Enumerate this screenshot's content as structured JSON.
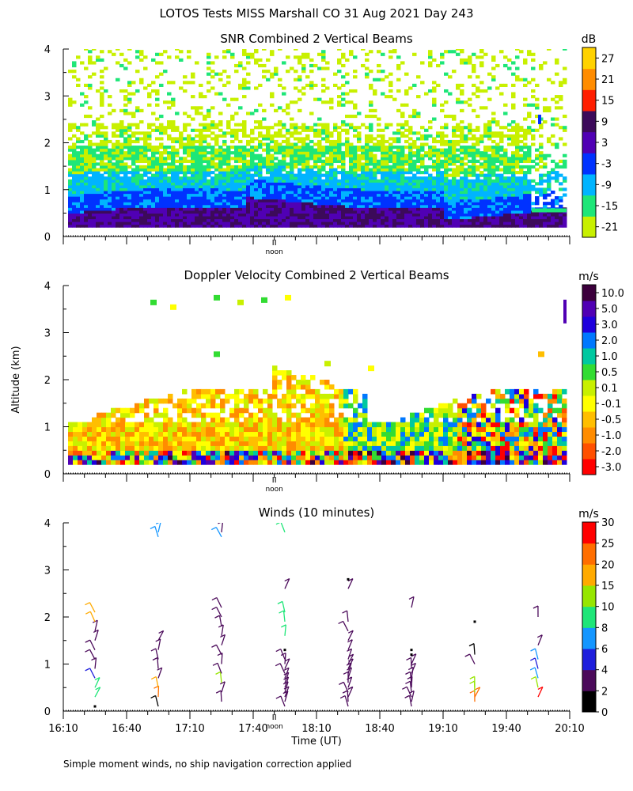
{
  "figure": {
    "title": "LOTOS Tests MISS Marshall CO  31 Aug 2021 Day 243",
    "footnote": "Simple moment winds, no ship navigation correction applied",
    "ylabel": "Altitude (km)",
    "xlabel": "Time (UT)",
    "noon_label": "noon"
  },
  "chart_data": [
    {
      "type": "heatmap",
      "title": "SNR Combined 2 Vertical Beams",
      "ylim": [
        0,
        4
      ],
      "yticks": [
        "0",
        "1",
        "2",
        "3",
        "4"
      ],
      "colorbar": {
        "unit": "dB",
        "tick_labels": [
          "-21",
          "-15",
          "-9",
          "-3",
          "3",
          "9",
          "15",
          "21",
          "27"
        ],
        "colors": [
          "#c8f000",
          "#1ee678",
          "#00b4ff",
          "#0032ff",
          "#5000b4",
          "#3c0a5a",
          "#ff1e00",
          "#ff8c00",
          "#ffd200"
        ]
      },
      "noon_x": "17:50"
    },
    {
      "type": "heatmap",
      "title": "Doppler Velocity Combined 2 Vertical Beams",
      "ylim": [
        0,
        4
      ],
      "yticks": [
        "0",
        "1",
        "2",
        "3",
        "4"
      ],
      "colorbar": {
        "unit": "m/s",
        "tick_labels": [
          "-3.0",
          "-2.0",
          "-1.0",
          "-0.5",
          "-0.1",
          "0.1",
          "0.5",
          "1.0",
          "2.0",
          "3.0",
          "5.0",
          "10.0"
        ],
        "colors": [
          "#ff0000",
          "#ff5000",
          "#ff8c00",
          "#ffbe00",
          "#ffff00",
          "#c8f000",
          "#32dc32",
          "#00c8a0",
          "#0078ff",
          "#1e00dc",
          "#5000b4",
          "#3c003c"
        ]
      },
      "noon_x": "17:50"
    },
    {
      "type": "scatter",
      "title": "Winds (10 minutes)",
      "ylim": [
        0,
        4
      ],
      "yticks": [
        "0",
        "1",
        "2",
        "3",
        "4"
      ],
      "xticks": [
        "16:10",
        "16:40",
        "17:10",
        "17:40",
        "18:10",
        "18:40",
        "19:10",
        "19:40",
        "20:10"
      ],
      "colorbar": {
        "unit": "m/s",
        "tick_labels": [
          "0",
          "2",
          "4",
          "6",
          "8",
          "10",
          "15",
          "20",
          "25",
          "30"
        ],
        "colors": [
          "#000000",
          "#4b0a5a",
          "#1e1edc",
          "#1496ff",
          "#1ee678",
          "#96e600",
          "#ffaa00",
          "#ff6e00",
          "#ff0000"
        ]
      },
      "noon_x": "17:50",
      "profile_times": [
        "16:25",
        "16:55",
        "17:25",
        "17:55",
        "18:25",
        "18:55",
        "19:25",
        "19:55"
      ],
      "profiles": [
        [
          0.1,
          0.3,
          0.5,
          0.7,
          0.9,
          1.1,
          1.3,
          1.5,
          1.7,
          1.9,
          2.1
        ],
        [
          0.1,
          0.3,
          0.5,
          0.7,
          0.9,
          1.1,
          1.3,
          1.5,
          3.7,
          3.8
        ],
        [
          0.2,
          0.4,
          0.6,
          0.8,
          1.0,
          1.2,
          1.4,
          1.6,
          1.8,
          2.0,
          2.2,
          3.7,
          3.8
        ],
        [
          0.1,
          0.2,
          0.3,
          0.4,
          0.5,
          0.6,
          0.7,
          0.8,
          0.9,
          1.0,
          1.1,
          1.3,
          1.6,
          1.9,
          2.1,
          2.6,
          3.8
        ],
        [
          0.1,
          0.2,
          0.3,
          0.4,
          0.5,
          0.6,
          0.7,
          0.8,
          0.9,
          1.0,
          1.1,
          1.3,
          1.5,
          1.7,
          1.9,
          2.6,
          2.8
        ],
        [
          0.1,
          0.2,
          0.3,
          0.4,
          0.5,
          0.6,
          0.7,
          0.8,
          0.9,
          1.0,
          1.2,
          1.3,
          2.2
        ],
        [
          0.2,
          0.3,
          0.4,
          0.5,
          1.0,
          1.2,
          1.9
        ],
        [
          0.3,
          0.5,
          0.7,
          0.9,
          1.1,
          1.4,
          2.0
        ]
      ],
      "speeds": [
        [
          0,
          8,
          8,
          4,
          3,
          3,
          3,
          2,
          2,
          15,
          18
        ],
        [
          1,
          20,
          15,
          3,
          3,
          3,
          2,
          2,
          7,
          7
        ],
        [
          2,
          2,
          14,
          3,
          3,
          3,
          2,
          2,
          2,
          2,
          2,
          7,
          3
        ],
        [
          3,
          3,
          3,
          3,
          3,
          3,
          2,
          2,
          2,
          2,
          2,
          0,
          8,
          8,
          8,
          3,
          8
        ],
        [
          3,
          3,
          3,
          3,
          3,
          3,
          2,
          2,
          2,
          2,
          2,
          2,
          2,
          3,
          3,
          2,
          0
        ],
        [
          3,
          3,
          3,
          3,
          3,
          3,
          2,
          2,
          2,
          2,
          0,
          0,
          3
        ],
        [
          20,
          22,
          14,
          13,
          3,
          1,
          0
        ],
        [
          25,
          14,
          7,
          4,
          6,
          3,
          2
        ]
      ]
    }
  ]
}
